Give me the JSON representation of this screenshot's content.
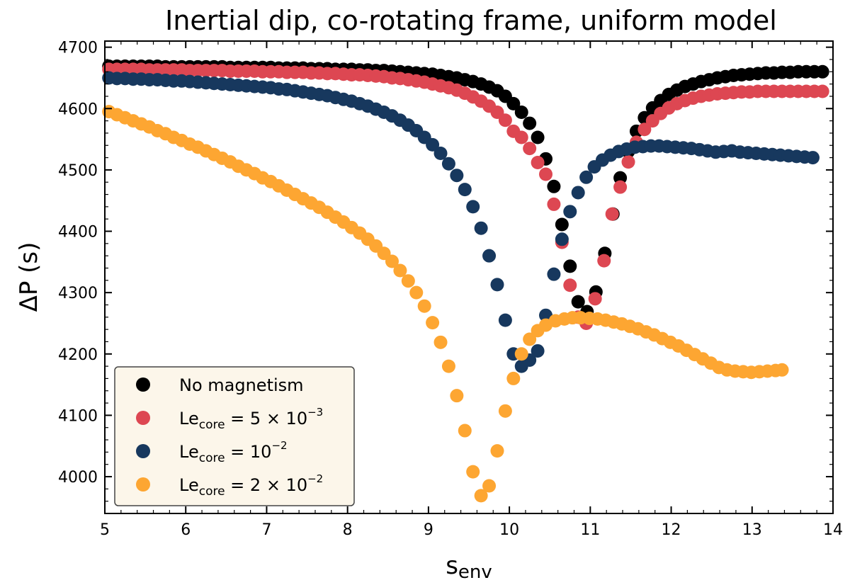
{
  "chart_data": {
    "type": "scatter",
    "title": "Inertial dip, co-rotating frame, uniform model",
    "xlabel": "s",
    "xlabel_sub": "env",
    "ylabel": "ΔP (s)",
    "xlim": [
      5,
      14
    ],
    "ylim": [
      3940,
      4710
    ],
    "xticks": [
      5,
      6,
      7,
      8,
      9,
      10,
      11,
      12,
      13,
      14
    ],
    "yticks": [
      4000,
      4100,
      4200,
      4300,
      4400,
      4500,
      4600,
      4700
    ],
    "legend_position": "lower-left",
    "legend": [
      {
        "parts": [
          {
            "t": "No magnetism"
          }
        ]
      },
      {
        "parts": [
          {
            "t": "Le"
          },
          {
            "t": "core",
            "s": "sub"
          },
          {
            "t": " = 5 × 10"
          },
          {
            "t": "−3",
            "s": "sup"
          }
        ]
      },
      {
        "parts": [
          {
            "t": "Le"
          },
          {
            "t": "core",
            "s": "sub"
          },
          {
            "t": " = 10"
          },
          {
            "t": "−2",
            "s": "sup"
          }
        ]
      },
      {
        "parts": [
          {
            "t": "Le"
          },
          {
            "t": "core",
            "s": "sub"
          },
          {
            "t": " = 2 × 10"
          },
          {
            "t": "−2",
            "s": "sup"
          }
        ]
      }
    ],
    "series": [
      {
        "name": "No magnetism",
        "color": "#000000",
        "x": [
          5.05,
          5.15,
          5.25,
          5.35,
          5.45,
          5.55,
          5.65,
          5.75,
          5.85,
          5.95,
          6.05,
          6.15,
          6.25,
          6.35,
          6.45,
          6.55,
          6.65,
          6.75,
          6.85,
          6.95,
          7.05,
          7.15,
          7.25,
          7.35,
          7.45,
          7.55,
          7.65,
          7.75,
          7.85,
          7.95,
          8.05,
          8.15,
          8.25,
          8.35,
          8.45,
          8.55,
          8.65,
          8.75,
          8.85,
          8.95,
          9.05,
          9.15,
          9.25,
          9.35,
          9.45,
          9.55,
          9.65,
          9.75,
          9.85,
          9.95,
          10.05,
          10.15,
          10.25,
          10.35,
          10.45,
          10.55,
          10.65,
          10.75,
          10.85,
          10.96,
          11.07,
          11.18,
          11.28,
          11.37,
          11.47,
          11.57,
          11.67,
          11.77,
          11.87,
          11.97,
          12.07,
          12.17,
          12.27,
          12.37,
          12.47,
          12.57,
          12.67,
          12.77,
          12.87,
          12.97,
          13.07,
          13.17,
          13.27,
          13.37,
          13.47,
          13.57,
          13.67,
          13.77,
          13.87
        ],
        "y": [
          4669,
          4669,
          4669,
          4669,
          4669,
          4669,
          4669,
          4668,
          4668,
          4668,
          4668,
          4668,
          4668,
          4668,
          4668,
          4667,
          4667,
          4667,
          4667,
          4667,
          4667,
          4666,
          4666,
          4666,
          4666,
          4665,
          4665,
          4665,
          4664,
          4664,
          4664,
          4663,
          4663,
          4662,
          4662,
          4661,
          4660,
          4659,
          4658,
          4657,
          4656,
          4654,
          4652,
          4650,
          4647,
          4644,
          4640,
          4635,
          4629,
          4620,
          4608,
          4594,
          4576,
          4553,
          4518,
          4473,
          4411,
          4343,
          4285,
          4269,
          4301,
          4364,
          4428,
          4487,
          4530,
          4563,
          4585,
          4601,
          4613,
          4623,
          4630,
          4636,
          4640,
          4644,
          4647,
          4650,
          4652,
          4654,
          4655,
          4656,
          4657,
          4658,
          4658,
          4659,
          4659,
          4660,
          4660,
          4660,
          4660
        ]
      },
      {
        "name": "Le_core = 5 × 10^-3",
        "color": "#dd4752",
        "x": [
          5.05,
          5.15,
          5.25,
          5.35,
          5.45,
          5.55,
          5.65,
          5.75,
          5.85,
          5.95,
          6.05,
          6.15,
          6.25,
          6.35,
          6.45,
          6.55,
          6.65,
          6.75,
          6.85,
          6.95,
          7.05,
          7.15,
          7.25,
          7.35,
          7.45,
          7.55,
          7.65,
          7.75,
          7.85,
          7.95,
          8.05,
          8.15,
          8.25,
          8.35,
          8.45,
          8.55,
          8.65,
          8.75,
          8.85,
          8.95,
          9.05,
          9.15,
          9.25,
          9.35,
          9.45,
          9.55,
          9.65,
          9.75,
          9.85,
          9.95,
          10.05,
          10.15,
          10.25,
          10.35,
          10.45,
          10.55,
          10.65,
          10.75,
          10.85,
          10.95,
          11.06,
          11.17,
          11.27,
          11.37,
          11.47,
          11.57,
          11.67,
          11.77,
          11.87,
          11.97,
          12.07,
          12.17,
          12.27,
          12.37,
          12.47,
          12.57,
          12.67,
          12.77,
          12.87,
          12.97,
          13.07,
          13.17,
          13.27,
          13.37,
          13.47,
          13.57,
          13.67,
          13.77,
          13.87
        ],
        "y": [
          4664,
          4664,
          4664,
          4664,
          4664,
          4663,
          4663,
          4663,
          4663,
          4663,
          4662,
          4662,
          4662,
          4662,
          4662,
          4661,
          4661,
          4661,
          4661,
          4660,
          4660,
          4660,
          4659,
          4659,
          4659,
          4658,
          4658,
          4657,
          4657,
          4656,
          4655,
          4655,
          4654,
          4653,
          4652,
          4650,
          4649,
          4647,
          4645,
          4643,
          4640,
          4637,
          4634,
          4630,
          4625,
          4619,
          4612,
          4604,
          4594,
          4581,
          4563,
          4553,
          4535,
          4512,
          4493,
          4444,
          4382,
          4312,
          4260,
          4250,
          4290,
          4352,
          4428,
          4472,
          4513,
          4545,
          4566,
          4580,
          4592,
          4601,
          4608,
          4613,
          4617,
          4620,
          4622,
          4624,
          4625,
          4626,
          4627,
          4627,
          4628,
          4628,
          4628,
          4628,
          4628,
          4628,
          4628,
          4628,
          4628
        ]
      },
      {
        "name": "Le_core = 10^-2",
        "color": "#17385e",
        "x": [
          5.05,
          5.15,
          5.25,
          5.35,
          5.45,
          5.55,
          5.65,
          5.75,
          5.85,
          5.95,
          6.05,
          6.15,
          6.25,
          6.35,
          6.45,
          6.55,
          6.65,
          6.75,
          6.85,
          6.95,
          7.05,
          7.15,
          7.25,
          7.35,
          7.45,
          7.55,
          7.65,
          7.75,
          7.85,
          7.95,
          8.05,
          8.15,
          8.25,
          8.35,
          8.45,
          8.55,
          8.65,
          8.75,
          8.85,
          8.95,
          9.05,
          9.15,
          9.25,
          9.35,
          9.45,
          9.55,
          9.65,
          9.75,
          9.85,
          9.95,
          10.05,
          10.15,
          10.25,
          10.35,
          10.45,
          10.55,
          10.65,
          10.75,
          10.85,
          10.95,
          11.05,
          11.15,
          11.25,
          11.35,
          11.45,
          11.55,
          11.65,
          11.75,
          11.85,
          11.95,
          12.05,
          12.15,
          12.25,
          12.35,
          12.45,
          12.55,
          12.65,
          12.75,
          12.85,
          12.95,
          13.05,
          13.15,
          13.25,
          13.35,
          13.45,
          13.55,
          13.65,
          13.75
        ],
        "y": [
          4650,
          4649,
          4649,
          4648,
          4648,
          4647,
          4647,
          4646,
          4645,
          4645,
          4644,
          4643,
          4642,
          4641,
          4640,
          4639,
          4638,
          4637,
          4636,
          4635,
          4634,
          4632,
          4631,
          4629,
          4627,
          4625,
          4623,
          4621,
          4618,
          4615,
          4612,
          4608,
          4604,
          4599,
          4594,
          4588,
          4581,
          4573,
          4564,
          4553,
          4541,
          4527,
          4510,
          4491,
          4468,
          4440,
          4405,
          4360,
          4313,
          4255,
          4200,
          4180,
          4190,
          4205,
          4263,
          4330,
          4387,
          4432,
          4463,
          4488,
          4505,
          4516,
          4524,
          4530,
          4534,
          4537,
          4538,
          4539,
          4539,
          4538,
          4537,
          4536,
          4535,
          4533,
          4531,
          4529,
          4530,
          4531,
          4529,
          4528,
          4527,
          4526,
          4525,
          4524,
          4523,
          4522,
          4521,
          4520
        ]
      },
      {
        "name": "Le_core = 2 × 10^-2",
        "color": "#fda632",
        "x": [
          5.05,
          5.15,
          5.25,
          5.35,
          5.45,
          5.55,
          5.65,
          5.75,
          5.85,
          5.95,
          6.05,
          6.15,
          6.25,
          6.35,
          6.45,
          6.55,
          6.65,
          6.75,
          6.85,
          6.95,
          7.05,
          7.15,
          7.25,
          7.35,
          7.45,
          7.55,
          7.65,
          7.75,
          7.85,
          7.95,
          8.05,
          8.15,
          8.25,
          8.35,
          8.45,
          8.55,
          8.65,
          8.75,
          8.85,
          8.95,
          9.05,
          9.15,
          9.25,
          9.35,
          9.45,
          9.55,
          9.65,
          9.75,
          9.85,
          9.95,
          10.05,
          10.15,
          10.25,
          10.35,
          10.45,
          10.57,
          10.68,
          10.78,
          10.88,
          10.99,
          11.09,
          11.19,
          11.29,
          11.39,
          11.49,
          11.59,
          11.69,
          11.79,
          11.89,
          11.99,
          12.09,
          12.19,
          12.29,
          12.39,
          12.49,
          12.59,
          12.69,
          12.79,
          12.89,
          12.99,
          13.09,
          13.19,
          13.29,
          13.37
        ],
        "y": [
          4595,
          4590,
          4585,
          4580,
          4575,
          4570,
          4564,
          4559,
          4553,
          4548,
          4542,
          4537,
          4531,
          4525,
          4519,
          4513,
          4506,
          4500,
          4494,
          4487,
          4481,
          4474,
          4467,
          4460,
          4453,
          4446,
          4439,
          4431,
          4423,
          4415,
          4406,
          4397,
          4387,
          4376,
          4364,
          4351,
          4336,
          4319,
          4300,
          4278,
          4251,
          4219,
          4180,
          4132,
          4075,
          4008,
          3969,
          3985,
          4042,
          4107,
          4160,
          4200,
          4224,
          4238,
          4247,
          4254,
          4257,
          4259,
          4259,
          4258,
          4257,
          4255,
          4252,
          4249,
          4245,
          4241,
          4236,
          4231,
          4225,
          4219,
          4213,
          4206,
          4199,
          4192,
          4185,
          4178,
          4174,
          4172,
          4171,
          4170,
          4171,
          4172,
          4173,
          4174
        ]
      }
    ]
  }
}
